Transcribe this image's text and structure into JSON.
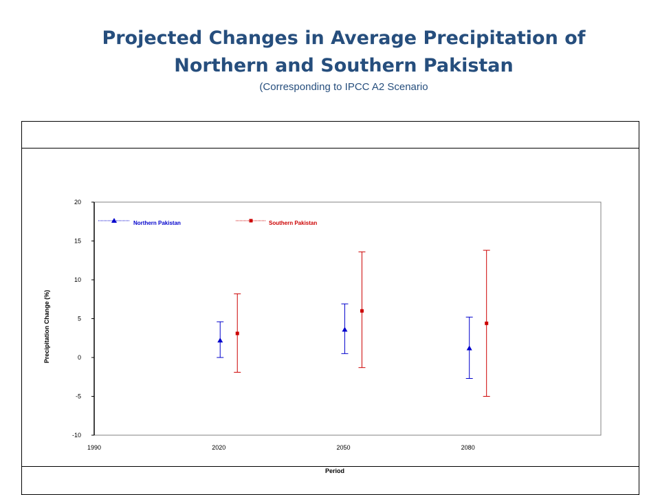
{
  "chart_data": {
    "type": "scatter",
    "title": "Projected Changes in Average Precipitation of",
    "title_line_2": "Northern and Southern Pakistan",
    "subtitle": "(Corresponding to IPCC A2 Scenario",
    "xlabel": "Period",
    "ylabel": "Precipitation Change (%)",
    "x_ticks": [
      1990,
      2020,
      2050,
      2080
    ],
    "y_ticks": [
      -10,
      -5,
      0,
      5,
      10,
      15,
      20
    ],
    "xlim": [
      1990,
      2112
    ],
    "ylim": [
      -10,
      20
    ],
    "grid": false,
    "legend": "top-left",
    "error_bars": true,
    "series": [
      {
        "name": "Northern Pakistan",
        "marker": "triangle",
        "color": "#0000cc",
        "points": [
          {
            "x": 2020,
            "y": 2.2,
            "low": 0,
            "high": 4.6
          },
          {
            "x": 2050,
            "y": 3.6,
            "low": 0.5,
            "high": 6.9
          },
          {
            "x": 2080,
            "y": 1.2,
            "low": -2.7,
            "high": 5.2
          }
        ]
      },
      {
        "name": "Southern Pakistan",
        "marker": "square",
        "color": "#cc0000",
        "points": [
          {
            "x": 2020,
            "y": 3.1,
            "low": -1.9,
            "high": 8.2
          },
          {
            "x": 2050,
            "y": 6.0,
            "low": -1.3,
            "high": 13.6
          },
          {
            "x": 2080,
            "y": 4.4,
            "low": -5.0,
            "high": 13.8
          }
        ]
      }
    ]
  }
}
